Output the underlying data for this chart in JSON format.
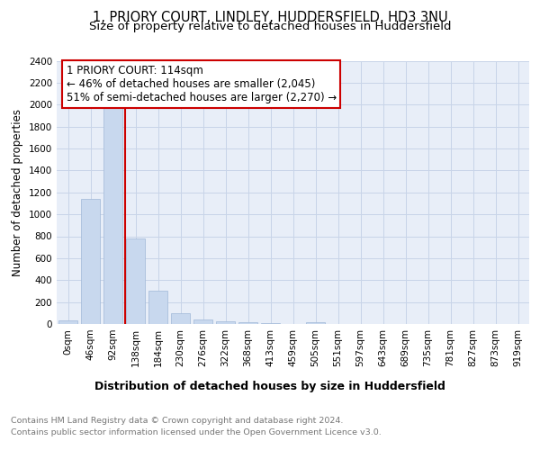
{
  "title1": "1, PRIORY COURT, LINDLEY, HUDDERSFIELD, HD3 3NU",
  "title2": "Size of property relative to detached houses in Huddersfield",
  "xlabel": "Distribution of detached houses by size in Huddersfield",
  "ylabel": "Number of detached properties",
  "categories": [
    "0sqm",
    "46sqm",
    "92sqm",
    "138sqm",
    "184sqm",
    "230sqm",
    "276sqm",
    "322sqm",
    "368sqm",
    "413sqm",
    "459sqm",
    "505sqm",
    "551sqm",
    "597sqm",
    "643sqm",
    "689sqm",
    "735sqm",
    "781sqm",
    "827sqm",
    "873sqm",
    "919sqm"
  ],
  "values": [
    30,
    1140,
    1980,
    780,
    300,
    95,
    45,
    25,
    20,
    8,
    0,
    20,
    0,
    0,
    0,
    0,
    0,
    0,
    0,
    0,
    0
  ],
  "bar_color": "#c8d8ee",
  "bar_edge_color": "#a0b8d8",
  "grid_color": "#c8d4e8",
  "bg_color": "#e8eef8",
  "vline_x": 2.55,
  "vline_color": "#cc0000",
  "annotation_text": "1 PRIORY COURT: 114sqm\n← 46% of detached houses are smaller (2,045)\n51% of semi-detached houses are larger (2,270) →",
  "annotation_box_color": "#cc0000",
  "ylim": [
    0,
    2400
  ],
  "yticks": [
    0,
    200,
    400,
    600,
    800,
    1000,
    1200,
    1400,
    1600,
    1800,
    2000,
    2200,
    2400
  ],
  "footnote1": "Contains HM Land Registry data © Crown copyright and database right 2024.",
  "footnote2": "Contains public sector information licensed under the Open Government Licence v3.0.",
  "title1_fontsize": 10.5,
  "title2_fontsize": 9.5,
  "xlabel_fontsize": 9,
  "ylabel_fontsize": 8.5,
  "tick_fontsize": 7.5,
  "annotation_fontsize": 8.5,
  "footnote_fontsize": 6.8
}
